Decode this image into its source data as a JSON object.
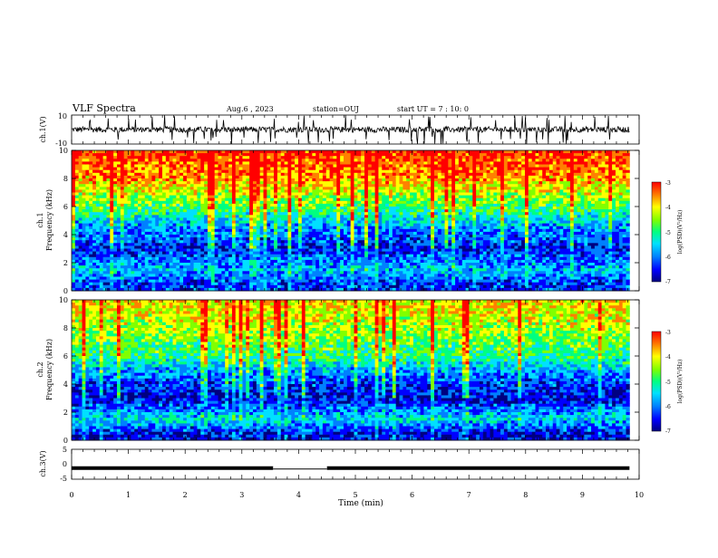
{
  "header": {
    "title": "VLF Spectra",
    "date": "Aug.6 , 2023",
    "station": "station=OUJ",
    "start": "start UT = 7 : 10: 0"
  },
  "colors": {
    "spectrogram_scale": [
      "#000080",
      "#0000ff",
      "#0080ff",
      "#00e0ff",
      "#00ff80",
      "#80ff00",
      "#ffff00",
      "#ff8000",
      "#ff0000"
    ],
    "waveform": "#000000"
  },
  "chart_data": [
    {
      "type": "line",
      "panel": "ch1-waveform",
      "ylabel": "ch.1(V)",
      "ylim": [
        -10,
        10
      ],
      "yticks": [
        "10",
        "-10"
      ],
      "xlim": [
        0,
        10
      ],
      "description_values": {
        "baseline_v": 0,
        "typical_amplitude_v": 2,
        "spike_amplitude_v": 10
      }
    },
    {
      "type": "heatmap",
      "panel": "ch1-spectrogram",
      "ylabel": "ch.1\nFrequency (kHz)",
      "ylabel_line1": "ch.1",
      "ylabel_line2": "Frequency (kHz)",
      "ylim": [
        0,
        10
      ],
      "yticks": [
        "0",
        "2",
        "4",
        "6",
        "8",
        "10"
      ],
      "xlim": [
        0,
        9.83
      ],
      "colorbar": {
        "label": "log(PSD)(V²/Hz)",
        "ticks": [
          "-3",
          "-4",
          "-5",
          "-6",
          "-7"
        ],
        "range": [
          -7,
          -3
        ]
      },
      "approx_levels_by_freq_khz": [
        {
          "freq": 0.5,
          "log_psd": -6.2
        },
        {
          "freq": 1.5,
          "log_psd": -5.6
        },
        {
          "freq": 3,
          "log_psd": -6.3
        },
        {
          "freq": 4.5,
          "log_psd": -5.8
        },
        {
          "freq": 6,
          "log_psd": -4.8
        },
        {
          "freq": 8,
          "log_psd": -3.8
        },
        {
          "freq": 10,
          "log_psd": -3.3
        }
      ]
    },
    {
      "type": "heatmap",
      "panel": "ch2-spectrogram",
      "ylabel_line1": "ch.2",
      "ylabel_line2": "Frequency (kHz)",
      "ylim": [
        0,
        10
      ],
      "yticks": [
        "0",
        "2",
        "4",
        "6",
        "8",
        "10"
      ],
      "xlim": [
        0,
        9.83
      ],
      "colorbar": {
        "label": "log(PSD)(V²/Hz)",
        "ticks": [
          "-3",
          "-4",
          "-5",
          "-6",
          "-7"
        ],
        "range": [
          -7,
          -3
        ]
      },
      "approx_levels_by_freq_khz": [
        {
          "freq": 0.5,
          "log_psd": -6.4
        },
        {
          "freq": 1.5,
          "log_psd": -5.4
        },
        {
          "freq": 3,
          "log_psd": -6.5
        },
        {
          "freq": 4.5,
          "log_psd": -6.0
        },
        {
          "freq": 6,
          "log_psd": -5.0
        },
        {
          "freq": 8,
          "log_psd": -4.4
        },
        {
          "freq": 10,
          "log_psd": -4.0
        }
      ]
    },
    {
      "type": "line",
      "panel": "ch3-waveform",
      "ylabel": "ch.3(V)",
      "ylim": [
        -5,
        5
      ],
      "yticks": [
        "5",
        "0",
        "-5"
      ],
      "xlim": [
        0,
        10
      ],
      "xlabel": "Time (min)",
      "xticks": [
        "0",
        "1",
        "2",
        "3",
        "4",
        "5",
        "6",
        "7",
        "8",
        "9",
        "10"
      ],
      "segments": [
        {
          "x": [
            0,
            3.55
          ],
          "y": -1.3
        },
        {
          "x": [
            3.55,
            4.5
          ],
          "y": -1.6
        },
        {
          "x": [
            4.5,
            9.83
          ],
          "y": -1.3
        }
      ]
    }
  ]
}
